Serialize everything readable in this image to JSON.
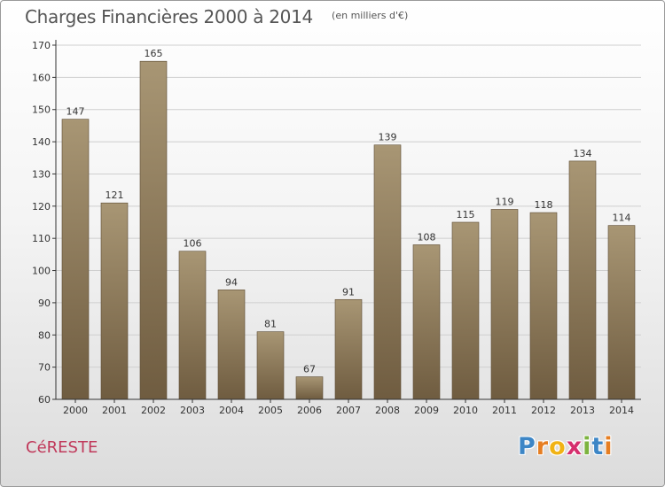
{
  "header": {
    "title": "Charges Financières 2000 à 2014",
    "subtitle": "(en milliers d'€)"
  },
  "footer": {
    "town": "CéRESTE",
    "brand": "Proxiti",
    "brand_letters": [
      "P",
      "r",
      "o",
      "x",
      "i",
      "t",
      "i"
    ],
    "brand_colors": [
      "#3d86c6",
      "#e67e22",
      "#f1b315",
      "#d62f6e",
      "#7cb33f",
      "#3d86c6",
      "#e67e22"
    ]
  },
  "colors": {
    "bar_top": "#a89674",
    "bar_bottom": "#6f5c40",
    "axis": "#333333",
    "grid": "#cfcfcf"
  },
  "chart_data": {
    "type": "bar",
    "title": "Charges Financières 2000 à 2014",
    "subtitle": "(en milliers d'€)",
    "categories": [
      "2000",
      "2001",
      "2002",
      "2003",
      "2004",
      "2005",
      "2006",
      "2007",
      "2008",
      "2009",
      "2010",
      "2011",
      "2012",
      "2013",
      "2014"
    ],
    "values": [
      147,
      121,
      165,
      106,
      94,
      81,
      67,
      91,
      139,
      108,
      115,
      119,
      118,
      134,
      114
    ],
    "ylim": [
      60,
      170
    ],
    "yticks": [
      60,
      70,
      80,
      90,
      100,
      110,
      120,
      130,
      140,
      150,
      160,
      170
    ],
    "grid": true,
    "data_labels": true
  }
}
